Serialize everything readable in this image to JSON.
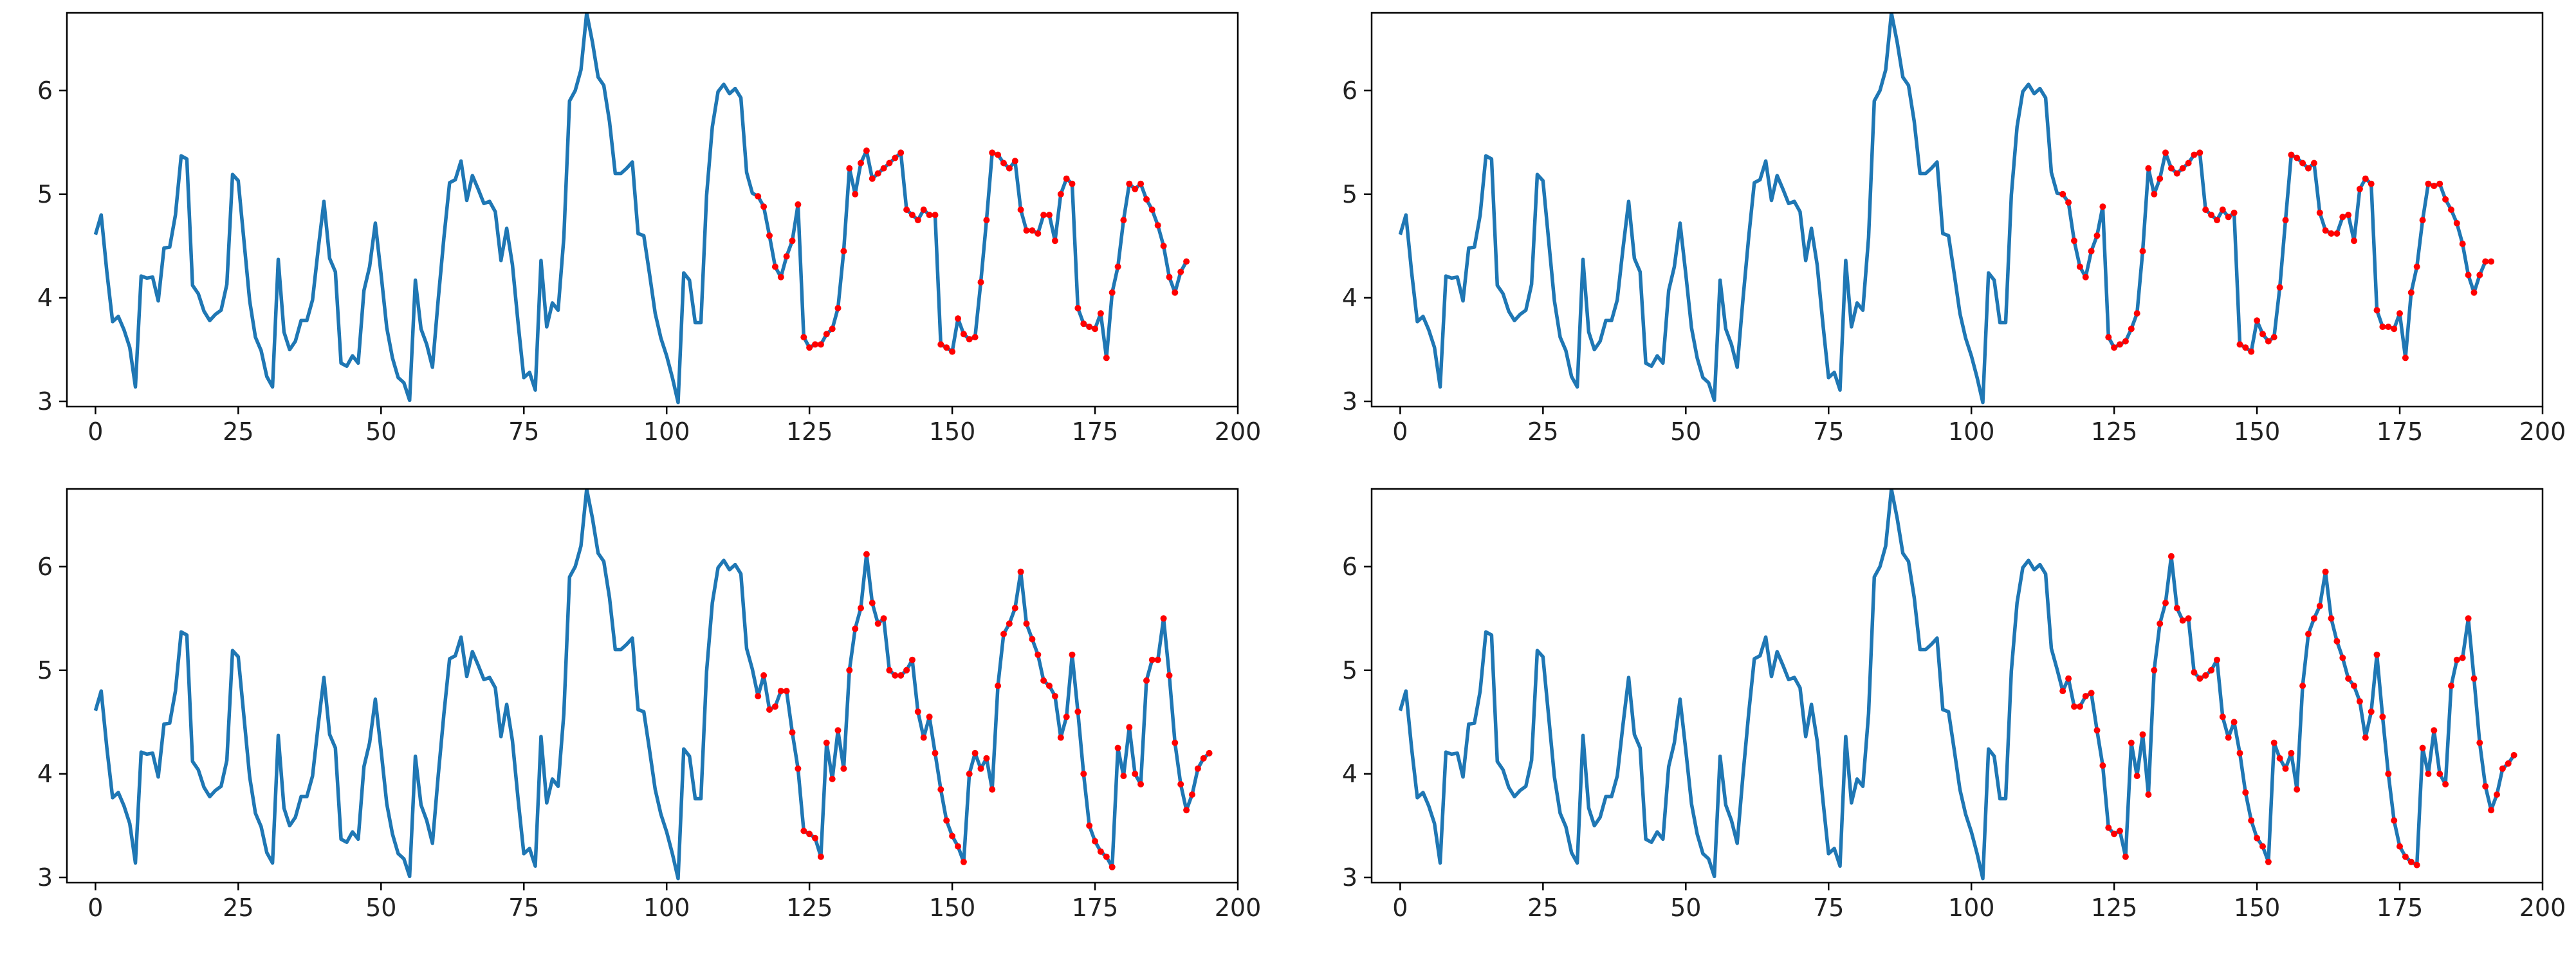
{
  "figure": {
    "rows": 2,
    "cols": 2,
    "background": "#ffffff"
  },
  "colors": {
    "line": "#1f77b4",
    "marker": "#ff0000",
    "axes": "#000000",
    "text": "#222222"
  },
  "base_series": [
    4.61,
    4.8,
    4.25,
    3.77,
    3.82,
    3.69,
    3.52,
    3.14,
    4.21,
    4.19,
    4.2,
    3.97,
    4.48,
    4.49,
    4.8,
    5.37,
    5.34,
    4.12,
    4.04,
    3.87,
    3.78,
    3.84,
    3.88,
    4.13,
    5.19,
    5.13,
    4.55,
    3.97,
    3.62,
    3.49,
    3.24,
    3.14,
    4.37,
    3.67,
    3.5,
    3.58,
    3.78,
    3.78,
    3.98,
    4.47,
    4.93,
    4.38,
    4.25,
    3.37,
    3.34,
    3.44,
    3.37,
    4.07,
    4.3,
    4.72,
    4.23,
    3.71,
    3.42,
    3.23,
    3.18,
    3.01,
    4.17,
    3.7,
    3.55,
    3.33,
    3.98,
    4.58,
    5.11,
    5.14,
    5.32,
    4.94,
    5.18,
    5.05,
    4.91,
    4.93,
    4.83,
    4.36,
    4.67,
    4.32,
    3.75,
    3.23,
    3.28,
    3.11,
    4.36,
    3.72,
    3.95,
    3.88,
    4.58,
    5.9,
    6.0,
    6.2,
    6.75,
    6.47,
    6.13,
    6.05,
    5.7,
    5.2,
    5.2,
    5.25,
    5.31,
    4.62,
    4.6,
    4.23,
    3.85,
    3.61,
    3.44,
    3.23,
    2.99,
    4.24,
    4.17,
    3.76,
    3.76,
    4.99,
    5.65,
    5.99,
    6.06,
    5.97,
    6.02,
    5.93,
    5.21,
    5.01
  ],
  "chart_data": [
    {
      "type": "line",
      "title": "",
      "xlabel": "",
      "ylabel": "",
      "xlim": [
        -5,
        200
      ],
      "ylim": [
        2.95,
        6.75
      ],
      "xticks": [
        0,
        25,
        50,
        75,
        100,
        125,
        150,
        175,
        200
      ],
      "yticks": [
        3,
        4,
        5,
        6
      ],
      "grid": false,
      "forecast_start": 116,
      "forecast": [
        4.98,
        4.88,
        4.6,
        4.3,
        4.2,
        4.4,
        4.55,
        4.9,
        3.62,
        3.52,
        3.55,
        3.55,
        3.65,
        3.7,
        3.9,
        4.45,
        5.25,
        5.0,
        5.3,
        5.42,
        5.15,
        5.2,
        5.25,
        5.3,
        5.35,
        5.4,
        4.85,
        4.8,
        4.75,
        4.85,
        4.8,
        4.8,
        3.55,
        3.52,
        3.48,
        3.8,
        3.65,
        3.6,
        3.62,
        4.15,
        4.75,
        5.4,
        5.38,
        5.3,
        5.25,
        5.32,
        4.85,
        4.65,
        4.65,
        4.62,
        4.8,
        4.8,
        4.55,
        5.0,
        5.15,
        5.1,
        3.9,
        3.75,
        3.72,
        3.7,
        3.85,
        3.42,
        4.05,
        4.3,
        4.75,
        5.1,
        5.05,
        5.1,
        4.95,
        4.85,
        4.7,
        4.5,
        4.2,
        4.05,
        4.25,
        4.35
      ]
    },
    {
      "type": "line",
      "title": "",
      "xlabel": "",
      "ylabel": "",
      "xlim": [
        -5,
        200
      ],
      "ylim": [
        2.95,
        6.75
      ],
      "xticks": [
        0,
        25,
        50,
        75,
        100,
        125,
        150,
        175,
        200
      ],
      "yticks": [
        3,
        4,
        5,
        6
      ],
      "grid": false,
      "forecast_start": 116,
      "forecast": [
        5.0,
        4.92,
        4.55,
        4.3,
        4.2,
        4.45,
        4.6,
        4.88,
        3.62,
        3.52,
        3.55,
        3.58,
        3.7,
        3.85,
        4.45,
        5.25,
        5.0,
        5.15,
        5.4,
        5.25,
        5.2,
        5.25,
        5.3,
        5.38,
        5.4,
        4.85,
        4.8,
        4.75,
        4.85,
        4.78,
        4.82,
        3.55,
        3.52,
        3.48,
        3.78,
        3.65,
        3.58,
        3.62,
        4.1,
        4.75,
        5.38,
        5.35,
        5.3,
        5.25,
        5.3,
        4.82,
        4.65,
        4.62,
        4.62,
        4.78,
        4.8,
        4.55,
        5.05,
        5.15,
        5.1,
        3.88,
        3.72,
        3.72,
        3.7,
        3.85,
        3.42,
        4.05,
        4.3,
        4.75,
        5.1,
        5.08,
        5.1,
        4.95,
        4.85,
        4.72,
        4.52,
        4.22,
        4.05,
        4.22,
        4.35,
        4.35
      ]
    },
    {
      "type": "line",
      "title": "",
      "xlabel": "",
      "ylabel": "",
      "xlim": [
        -5,
        200
      ],
      "ylim": [
        2.95,
        6.75
      ],
      "xticks": [
        0,
        25,
        50,
        75,
        100,
        125,
        150,
        175,
        200
      ],
      "yticks": [
        3,
        4,
        5,
        6
      ],
      "grid": false,
      "forecast_start": 116,
      "forecast": [
        4.75,
        4.95,
        4.62,
        4.65,
        4.8,
        4.8,
        4.4,
        4.05,
        3.45,
        3.42,
        3.38,
        3.2,
        4.3,
        3.95,
        4.42,
        4.05,
        5.0,
        5.4,
        5.6,
        6.12,
        5.65,
        5.45,
        5.5,
        5.0,
        4.95,
        4.95,
        5.0,
        5.1,
        4.6,
        4.35,
        4.55,
        4.2,
        3.85,
        3.55,
        3.4,
        3.3,
        3.15,
        4.0,
        4.2,
        4.05,
        4.15,
        3.85,
        4.85,
        5.35,
        5.45,
        5.6,
        5.95,
        5.45,
        5.3,
        5.15,
        4.9,
        4.85,
        4.75,
        4.35,
        4.55,
        5.15,
        4.6,
        4.0,
        3.5,
        3.35,
        3.25,
        3.2,
        3.1,
        4.25,
        3.98,
        4.45,
        4.0,
        3.9,
        4.9,
        5.1,
        5.1,
        5.5,
        4.95,
        4.3,
        3.9,
        3.65,
        3.8,
        4.05,
        4.15,
        4.2
      ]
    },
    {
      "type": "line",
      "title": "",
      "xlabel": "",
      "ylabel": "",
      "xlim": [
        -5,
        200
      ],
      "ylim": [
        2.95,
        6.75
      ],
      "xticks": [
        0,
        25,
        50,
        75,
        100,
        125,
        150,
        175,
        200
      ],
      "yticks": [
        3,
        4,
        5,
        6
      ],
      "grid": false,
      "forecast_start": 116,
      "forecast": [
        4.8,
        4.92,
        4.65,
        4.65,
        4.75,
        4.78,
        4.42,
        4.08,
        3.48,
        3.42,
        3.45,
        3.2,
        4.3,
        3.98,
        4.38,
        3.8,
        5.0,
        5.45,
        5.65,
        6.1,
        5.6,
        5.48,
        5.5,
        4.98,
        4.92,
        4.95,
        5.0,
        5.1,
        4.55,
        4.35,
        4.5,
        4.2,
        3.82,
        3.55,
        3.38,
        3.3,
        3.15,
        4.3,
        4.15,
        4.05,
        4.2,
        3.85,
        4.85,
        5.35,
        5.5,
        5.62,
        5.95,
        5.5,
        5.28,
        5.12,
        4.92,
        4.85,
        4.7,
        4.35,
        4.6,
        5.15,
        4.55,
        4.0,
        3.55,
        3.3,
        3.2,
        3.15,
        3.12,
        4.25,
        4.0,
        4.42,
        4.0,
        3.9,
        4.85,
        5.1,
        5.12,
        5.5,
        4.92,
        4.3,
        3.88,
        3.65,
        3.8,
        4.05,
        4.1,
        4.18
      ]
    }
  ]
}
